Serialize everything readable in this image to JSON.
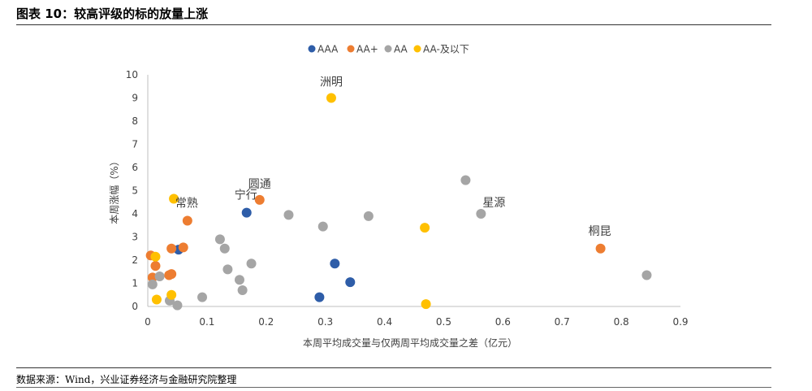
{
  "figure_title": "图表 10：较高评级的标的放量上涨",
  "source_text": "数据来源：Wind，兴业证券经济与金融研究院整理",
  "chart_data": {
    "type": "scatter",
    "title": "",
    "xlabel": "本周平均成交量与仅两周平均成交量之差（亿元）",
    "ylabel": "本周涨幅（%）",
    "xlim": [
      0,
      0.9
    ],
    "ylim": [
      0,
      10
    ],
    "x_ticks": [
      "0",
      "0.1",
      "0.2",
      "0.3",
      "0.4",
      "0.5",
      "0.6",
      "0.7",
      "0.8",
      "0.9"
    ],
    "y_ticks": [
      "0",
      "1",
      "2",
      "3",
      "4",
      "5",
      "6",
      "7",
      "8",
      "9",
      "10"
    ],
    "grid": false,
    "legend_position": "top",
    "series": [
      {
        "name": "AAA",
        "color": "#2E5DA8",
        "points": [
          {
            "x": 0.052,
            "y": 2.45
          },
          {
            "x": 0.167,
            "y": 4.05
          },
          {
            "x": 0.29,
            "y": 0.4
          },
          {
            "x": 0.316,
            "y": 1.85
          },
          {
            "x": 0.342,
            "y": 1.05
          }
        ]
      },
      {
        "name": "AA+",
        "color": "#ED7D31",
        "points": [
          {
            "x": 0.005,
            "y": 2.2
          },
          {
            "x": 0.013,
            "y": 1.75
          },
          {
            "x": 0.008,
            "y": 1.25
          },
          {
            "x": 0.036,
            "y": 1.35
          },
          {
            "x": 0.04,
            "y": 1.4
          },
          {
            "x": 0.04,
            "y": 2.5
          },
          {
            "x": 0.06,
            "y": 2.55
          },
          {
            "x": 0.067,
            "y": 3.7
          },
          {
            "x": 0.189,
            "y": 4.6
          },
          {
            "x": 0.765,
            "y": 2.5
          }
        ]
      },
      {
        "name": "AA",
        "color": "#A5A5A5",
        "points": [
          {
            "x": 0.008,
            "y": 0.95
          },
          {
            "x": 0.02,
            "y": 1.3
          },
          {
            "x": 0.037,
            "y": 0.25
          },
          {
            "x": 0.05,
            "y": 0.05
          },
          {
            "x": 0.092,
            "y": 0.4
          },
          {
            "x": 0.122,
            "y": 2.9
          },
          {
            "x": 0.13,
            "y": 2.5
          },
          {
            "x": 0.135,
            "y": 1.6
          },
          {
            "x": 0.155,
            "y": 1.15
          },
          {
            "x": 0.16,
            "y": 0.7
          },
          {
            "x": 0.175,
            "y": 1.85
          },
          {
            "x": 0.238,
            "y": 3.95
          },
          {
            "x": 0.296,
            "y": 3.45
          },
          {
            "x": 0.373,
            "y": 3.9
          },
          {
            "x": 0.537,
            "y": 5.45
          },
          {
            "x": 0.563,
            "y": 4.0
          },
          {
            "x": 0.843,
            "y": 1.35
          }
        ]
      },
      {
        "name": "AA-及以下",
        "color": "#FFC000",
        "points": [
          {
            "x": 0.013,
            "y": 2.15
          },
          {
            "x": 0.015,
            "y": 0.3
          },
          {
            "x": 0.04,
            "y": 0.5
          },
          {
            "x": 0.044,
            "y": 4.65
          },
          {
            "x": 0.31,
            "y": 9.0
          },
          {
            "x": 0.468,
            "y": 3.4
          },
          {
            "x": 0.47,
            "y": 0.1
          }
        ]
      }
    ],
    "annotations": [
      {
        "text": "洲明",
        "x": 0.31,
        "y": 9.0,
        "pos": "above"
      },
      {
        "text": "圆通",
        "x": 0.189,
        "y": 4.6,
        "pos": "above"
      },
      {
        "text": "宁行",
        "x": 0.167,
        "y": 4.05,
        "pos": "above-wide"
      },
      {
        "text": "常熟",
        "x": 0.067,
        "y": 3.7,
        "pos": "above-wide"
      },
      {
        "text": "星源",
        "x": 0.563,
        "y": 4.0,
        "pos": "upper-right"
      },
      {
        "text": "桐昆",
        "x": 0.765,
        "y": 2.5,
        "pos": "above-wide"
      }
    ]
  }
}
